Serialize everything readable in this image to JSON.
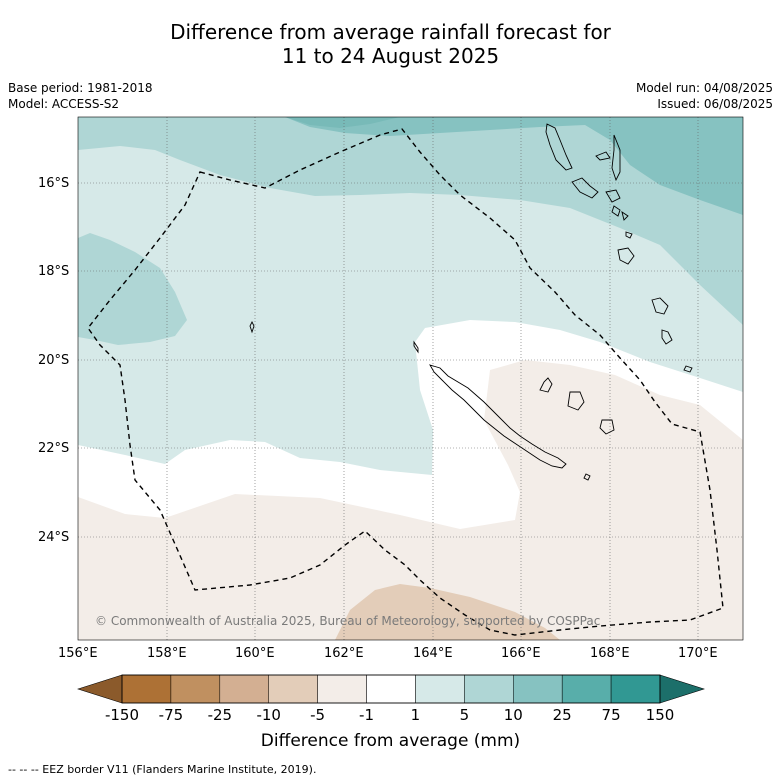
{
  "title": {
    "line1": "Difference from average rainfall forecast for",
    "line2": "11 to 24 August 2025"
  },
  "meta_left": {
    "base_period": "Base period: 1981-2018",
    "model": "Model: ACCESS-S2"
  },
  "meta_right": {
    "model_run": "Model run: 04/08/2025",
    "issued": "Issued: 06/08/2025"
  },
  "lat_ticks": [
    "16°S",
    "18°S",
    "20°S",
    "22°S",
    "24°S"
  ],
  "lon_ticks": [
    "156°E",
    "158°E",
    "160°E",
    "162°E",
    "164°E",
    "166°E",
    "168°E",
    "170°E"
  ],
  "copyright": "© Commonwealth of Australia 2025, Bureau of Meteorology, supported by COSPPac",
  "colorbar": {
    "labels": [
      "-150",
      "-75",
      "-25",
      "-10",
      "-5",
      "-1",
      "1",
      "5",
      "10",
      "25",
      "75",
      "150"
    ],
    "colors": [
      "#ad7135",
      "#c09060",
      "#d3af92",
      "#e3cdb9",
      "#f3ede8",
      "#ffffff",
      "#d6e9e8",
      "#afd6d5",
      "#86c2c1",
      "#58aeaa",
      "#319893"
    ],
    "low_extend_color": "#8b5a2b",
    "high_extend_color": "#1c6f6a",
    "title": "Difference from average (mm)"
  },
  "eez_note": "--  --  -- EEZ border V11 (Flanders Marine Institute, 2019)."
}
